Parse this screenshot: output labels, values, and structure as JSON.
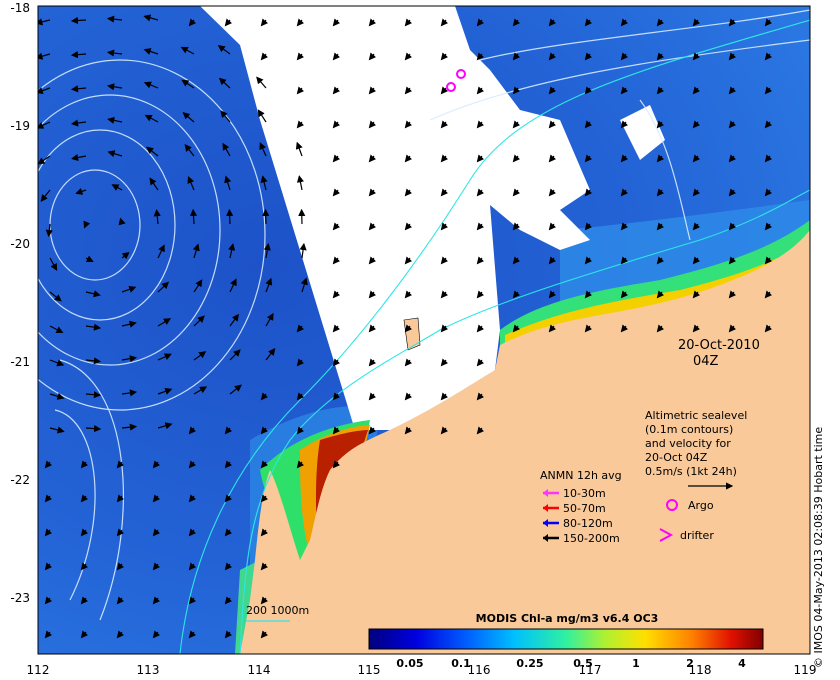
{
  "date_label": "20-Oct-2010",
  "time_label": "04Z",
  "x_ticks": [
    "112",
    "113",
    "114",
    "115",
    "116",
    "117",
    "118",
    "119"
  ],
  "y_ticks": [
    "-18",
    "-19",
    "-20",
    "-21",
    "-22",
    "-23"
  ],
  "altimetry_note": [
    "Altimetric sealevel",
    "(0.1m contours)",
    "and velocity for",
    "20-Oct 04Z",
    "0.5m/s (1kt 24h)"
  ],
  "anmn": {
    "title": "ANMN 12h avg",
    "items": [
      {
        "label": "10-30m",
        "color": "#ff33ff"
      },
      {
        "label": "50-70m",
        "color": "#ff0000"
      },
      {
        "label": "80-120m",
        "color": "#0000ff"
      },
      {
        "label": "150-200m",
        "color": "#000000"
      }
    ]
  },
  "argo_label": "Argo",
  "drifter_label": "drifter",
  "isobath_label": "200  1000m",
  "colorbar": {
    "title": "MODIS Chl-a mg/m3 v6.4 OC3",
    "ticks": [
      "0.05",
      "0.1",
      "0.25",
      "0.5",
      "1",
      "2",
      "4"
    ]
  },
  "credit": "© IMOS 04-May-2013 02:08:39 Hobart time",
  "colors": {
    "ocean_deep": "#1e4fc8",
    "ocean_mid": "#2a6ee0",
    "land": "#f9c99a",
    "cloud": "#ffffff",
    "contour": "#cfe8ff",
    "isobath": "#2ee6e6",
    "argo": "#ff00ff"
  }
}
